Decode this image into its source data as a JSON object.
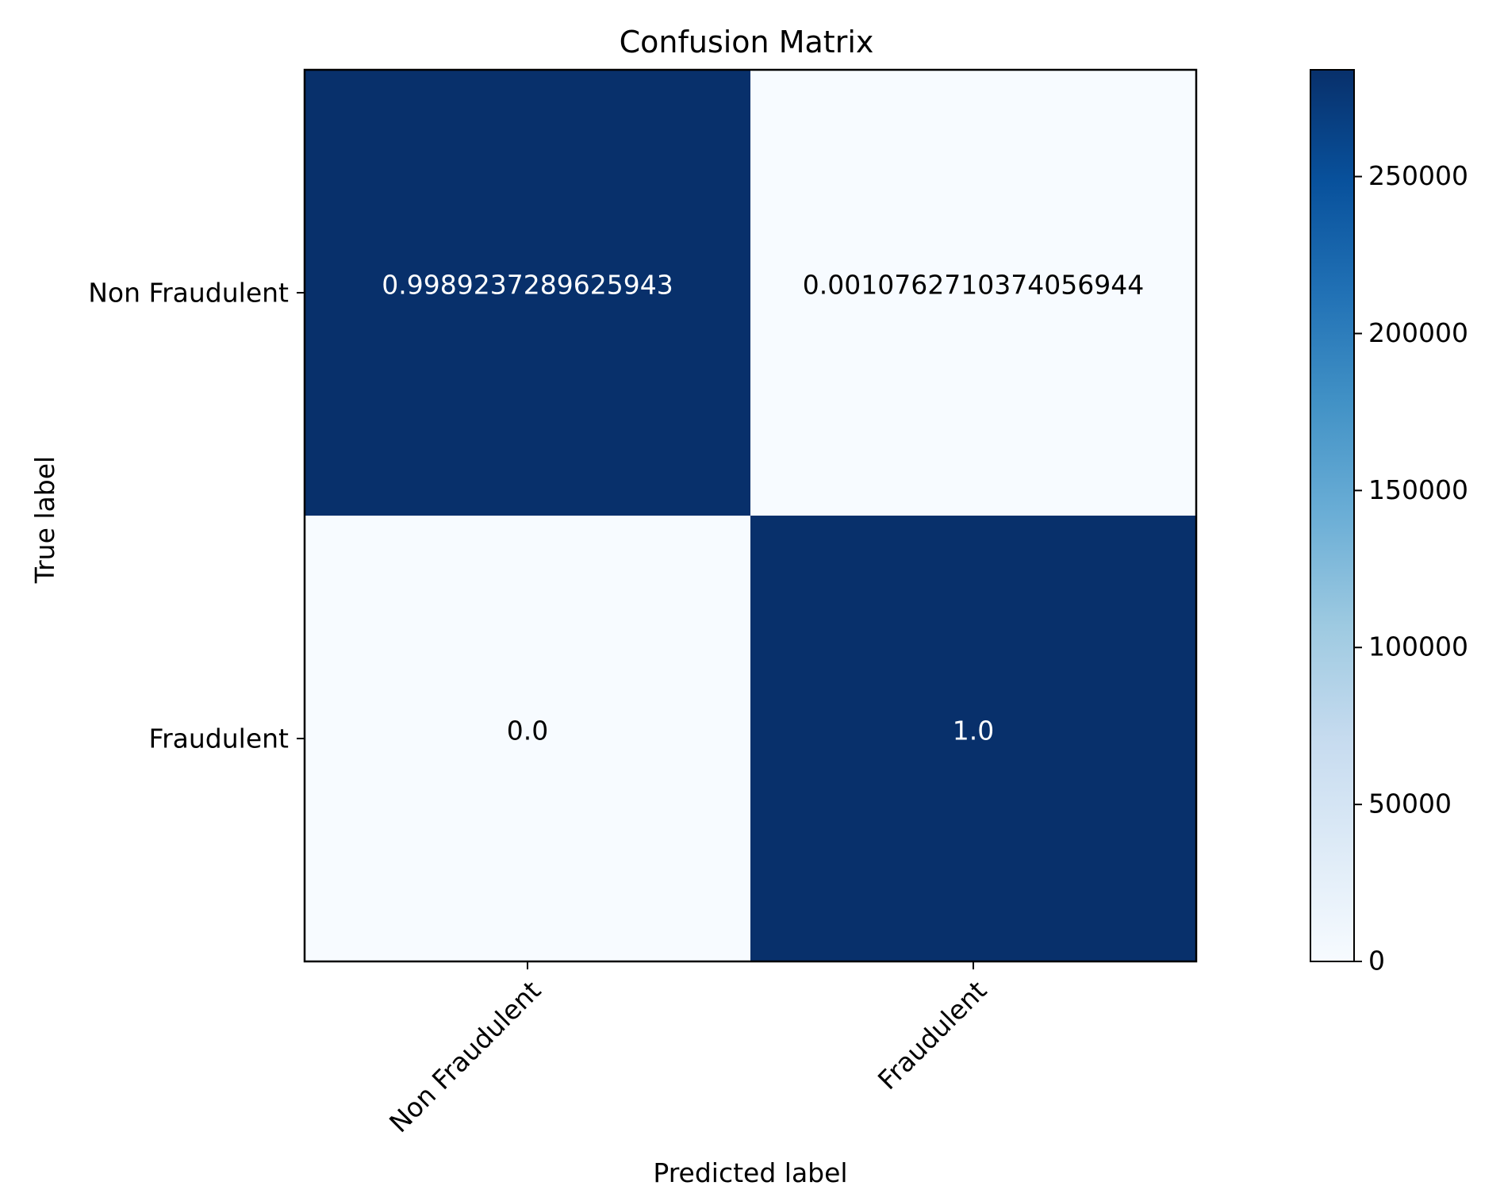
{
  "chart_data": {
    "type": "heatmap",
    "title": "Confusion Matrix",
    "xlabel": "Predicted label",
    "ylabel": "True label",
    "x_categories": [
      "Non Fraudulent",
      "Fraudulent"
    ],
    "y_categories": [
      "Non Fraudulent",
      "Fraudulent"
    ],
    "cells": [
      {
        "row": 0,
        "col": 0,
        "value": 0.9989237289625943,
        "label": "0.9989237289625943",
        "color_value": 284000
      },
      {
        "row": 0,
        "col": 1,
        "value": 0.0010762710374056944,
        "label": "0.0010762710374056944",
        "color_value": 0
      },
      {
        "row": 1,
        "col": 0,
        "value": 0.0,
        "label": "0.0",
        "color_value": 0
      },
      {
        "row": 1,
        "col": 1,
        "value": 1.0,
        "label": "1.0",
        "color_value": 284000
      }
    ],
    "colorbar": {
      "colormap": "Blues",
      "range": [
        0,
        284000
      ],
      "ticks": [
        {
          "value": 0,
          "label": "0"
        },
        {
          "value": 50000,
          "label": "50000"
        },
        {
          "value": 100000,
          "label": "100000"
        },
        {
          "value": 150000,
          "label": "150000"
        },
        {
          "value": 200000,
          "label": "200000"
        },
        {
          "value": 250000,
          "label": "250000"
        }
      ]
    },
    "colors": {
      "dark": "#08306b",
      "light": "#f7fbff",
      "text_on_dark": "#ffffff",
      "text_on_light": "#000000"
    }
  }
}
